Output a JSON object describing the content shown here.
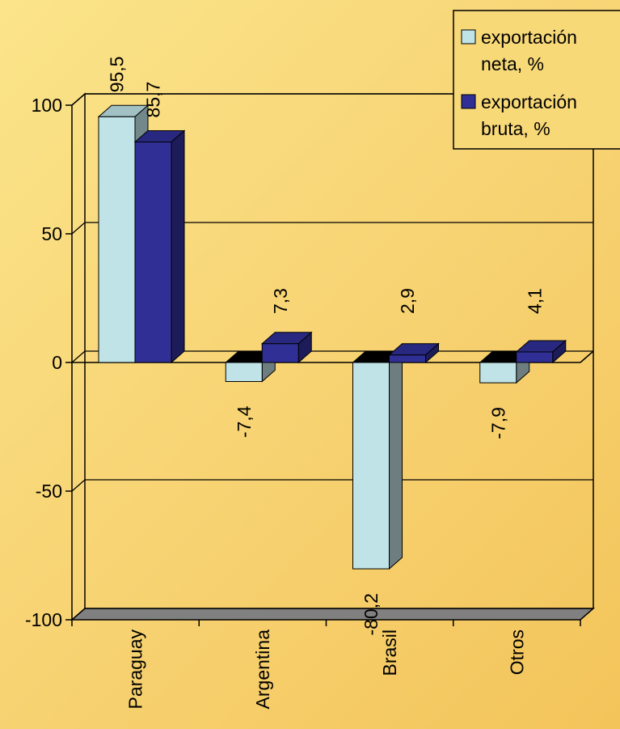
{
  "chart_data": {
    "type": "bar",
    "categories": [
      "Paraguay",
      "Argentina",
      "Brasil",
      "Otros"
    ],
    "series": [
      {
        "name": "exportación neta, %",
        "values": [
          95.5,
          -7.4,
          -80.2,
          -7.9
        ],
        "color": "#bfe3e6"
      },
      {
        "name": "exportación bruta, %",
        "values": [
          85.7,
          7.3,
          2.9,
          4.1
        ],
        "color": "#2f2f96"
      }
    ],
    "value_labels": [
      [
        "95,5",
        "-7,4",
        "-80,2",
        "-7,9"
      ],
      [
        "85,7",
        "7,3",
        "2,9",
        "4,1"
      ]
    ],
    "ylim": [
      -100,
      100
    ],
    "yticks": [
      {
        "value": 100,
        "label": "100"
      },
      {
        "value": 50,
        "label": "50"
      },
      {
        "value": 0,
        "label": "0"
      },
      {
        "value": -50,
        "label": "-50"
      },
      {
        "value": -100,
        "label": "-100"
      }
    ],
    "grid": true,
    "legend_position": "top-right",
    "title": "",
    "xlabel": "",
    "ylabel": ""
  }
}
